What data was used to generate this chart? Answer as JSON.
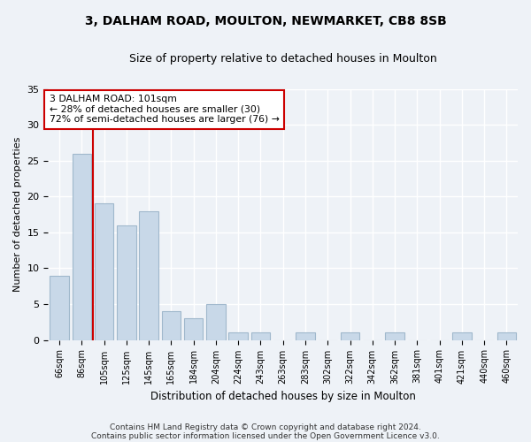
{
  "title1": "3, DALHAM ROAD, MOULTON, NEWMARKET, CB8 8SB",
  "title2": "Size of property relative to detached houses in Moulton",
  "xlabel": "Distribution of detached houses by size in Moulton",
  "ylabel": "Number of detached properties",
  "categories": [
    "66sqm",
    "86sqm",
    "105sqm",
    "125sqm",
    "145sqm",
    "165sqm",
    "184sqm",
    "204sqm",
    "224sqm",
    "243sqm",
    "263sqm",
    "283sqm",
    "302sqm",
    "322sqm",
    "342sqm",
    "362sqm",
    "381sqm",
    "401sqm",
    "421sqm",
    "440sqm",
    "460sqm"
  ],
  "values": [
    9,
    26,
    19,
    16,
    18,
    4,
    3,
    5,
    1,
    1,
    0,
    1,
    0,
    1,
    0,
    1,
    0,
    0,
    1,
    0,
    1
  ],
  "bar_color": "#c8d8e8",
  "bar_edge_color": "#a0b8cc",
  "annotation_text_line1": "3 DALHAM ROAD: 101sqm",
  "annotation_text_line2": "← 28% of detached houses are smaller (30)",
  "annotation_text_line3": "72% of semi-detached houses are larger (76) →",
  "annotation_box_color": "#ffffff",
  "annotation_box_edge": "#cc0000",
  "vline_color": "#cc0000",
  "footnote1": "Contains HM Land Registry data © Crown copyright and database right 2024.",
  "footnote2": "Contains public sector information licensed under the Open Government Licence v3.0.",
  "ylim": [
    0,
    35
  ],
  "yticks": [
    0,
    5,
    10,
    15,
    20,
    25,
    30,
    35
  ],
  "bg_color": "#eef2f7",
  "plot_bg_color": "#eef2f7",
  "grid_color": "#ffffff"
}
